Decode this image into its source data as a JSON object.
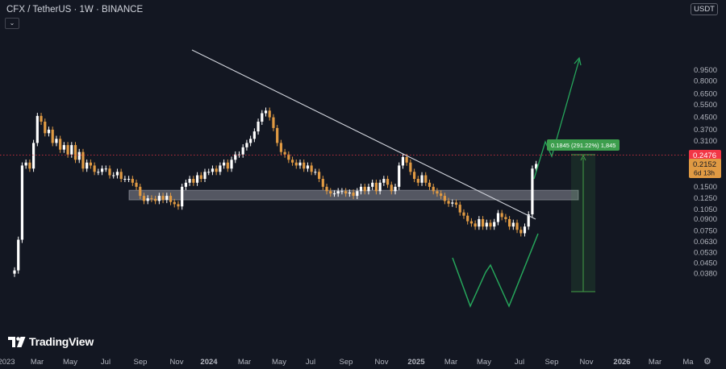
{
  "header": {
    "symbol_title": "CFX / TetherUS · 1W · BINANCE",
    "currency_button": "USDT",
    "collapse_icon": "chevron-down-icon"
  },
  "branding": {
    "logo_text": "TradingView"
  },
  "footer": {
    "settings_icon": "gear-icon"
  },
  "colors": {
    "background": "#131722",
    "up_candle": "#ffffff",
    "down_candle": "#e09a43",
    "axis_text": "#b2b5be",
    "trendline": "#d1d4dc",
    "pattern": "#26a65b",
    "last_price_tag": "#f23645",
    "current_price_tag": "#e09a43",
    "measure_box": "#43a047",
    "zone": "#9598a1"
  },
  "chart_data": {
    "type": "candlestick",
    "scale": "log",
    "price_axis": {
      "ticks": [
        "0.9500",
        "0.8000",
        "0.6500",
        "0.5500",
        "0.4500",
        "0.3700",
        "0.3100",
        "0.2476",
        "0.2152",
        "0.1800",
        "0.1500",
        "0.1250",
        "0.1050",
        "0.0900",
        "0.0750",
        "0.0630",
        "0.0530",
        "0.0450",
        "0.0380"
      ],
      "labels": {
        "last_price": "0.2476",
        "current_price": "0.2152",
        "countdown": "6d 13h"
      }
    },
    "time_axis": {
      "ticks": [
        "2023",
        "Mar",
        "May",
        "Jul",
        "Sep",
        "Nov",
        "2024",
        "Mar",
        "May",
        "Jul",
        "Sep",
        "Nov",
        "2025",
        "Mar",
        "May",
        "Jul",
        "Sep",
        "Nov",
        "2026",
        "Mar",
        "Ma"
      ],
      "bold": [
        "2024",
        "2025",
        "2026"
      ]
    },
    "weekly_closes_approx": [
      0.04,
      0.065,
      0.21,
      0.22,
      0.2,
      0.3,
      0.46,
      0.42,
      0.35,
      0.37,
      0.3,
      0.32,
      0.27,
      0.29,
      0.25,
      0.29,
      0.23,
      0.26,
      0.2,
      0.22,
      0.21,
      0.19,
      0.19,
      0.2,
      0.2,
      0.18,
      0.18,
      0.19,
      0.17,
      0.17,
      0.17,
      0.16,
      0.15,
      0.13,
      0.12,
      0.125,
      0.124,
      0.12,
      0.13,
      0.122,
      0.13,
      0.118,
      0.114,
      0.11,
      0.15,
      0.16,
      0.17,
      0.16,
      0.18,
      0.17,
      0.19,
      0.19,
      0.2,
      0.19,
      0.21,
      0.22,
      0.2,
      0.23,
      0.25,
      0.25,
      0.28,
      0.3,
      0.32,
      0.36,
      0.42,
      0.48,
      0.5,
      0.45,
      0.38,
      0.3,
      0.26,
      0.25,
      0.23,
      0.22,
      0.21,
      0.22,
      0.2,
      0.21,
      0.19,
      0.19,
      0.17,
      0.15,
      0.14,
      0.135,
      0.135,
      0.14,
      0.14,
      0.135,
      0.137,
      0.13,
      0.14,
      0.15,
      0.14,
      0.15,
      0.16,
      0.14,
      0.16,
      0.17,
      0.155,
      0.14,
      0.15,
      0.21,
      0.24,
      0.22,
      0.19,
      0.17,
      0.16,
      0.18,
      0.16,
      0.15,
      0.14,
      0.135,
      0.13,
      0.12,
      0.115,
      0.117,
      0.113,
      0.1,
      0.095,
      0.087,
      0.084,
      0.08,
      0.09,
      0.08,
      0.085,
      0.08,
      0.086,
      0.099,
      0.093,
      0.09,
      0.08,
      0.085,
      0.076,
      0.072,
      0.08,
      0.097,
      0.2,
      0.2152
    ],
    "annotations": {
      "measure_label": "0.1845 (291.22%) 1,845",
      "descending_trendline": "from ~0.65 (Jan 2024) through 0.53 peak (Mar 2024) breaking ~0.137 (Jul 2025)",
      "support_zone": [
        0.122,
        0.142
      ],
      "pattern": "double bottom (W) near 0.066",
      "projection_target": "~0.66"
    }
  }
}
